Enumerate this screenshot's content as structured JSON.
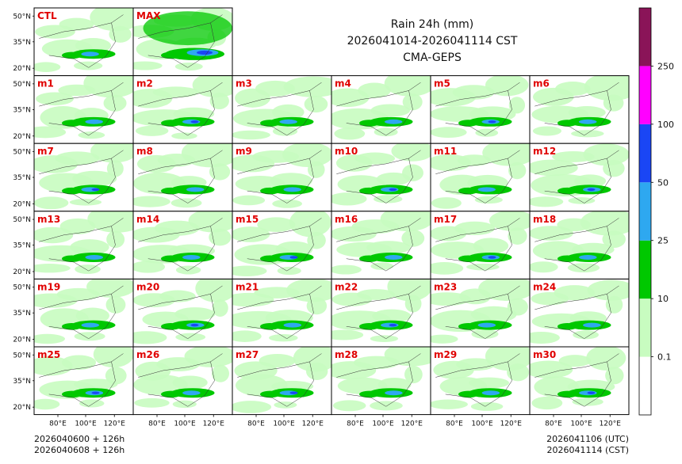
{
  "chart_data": {
    "type": "heatmap",
    "title": {
      "line1": "Rain 24h (mm)",
      "line2": "2026041014-2026041114 CST",
      "line3": "CMA-GEPS"
    },
    "panels": [
      "CTL",
      "MAX",
      "m1",
      "m2",
      "m3",
      "m4",
      "m5",
      "m6",
      "m7",
      "m8",
      "m9",
      "m10",
      "m11",
      "m12",
      "m13",
      "m14",
      "m15",
      "m16",
      "m17",
      "m18",
      "m19",
      "m20",
      "m21",
      "m22",
      "m23",
      "m24",
      "m25",
      "m26",
      "m27",
      "m28",
      "m29",
      "m30"
    ],
    "lat_ticks": [
      "50°N",
      "35°N",
      "20°N"
    ],
    "lon_ticks": [
      "80°E",
      "100°E",
      "120°E"
    ],
    "colorbar": {
      "levels": [
        0.1,
        10,
        25,
        50,
        100,
        250
      ],
      "labels": [
        "0.1",
        "10",
        "25",
        "50",
        "100",
        "250"
      ],
      "colors": [
        "#ffffff",
        "#c8fcc0",
        "#00c800",
        "#2ea8f0",
        "#1a46f5",
        "#ff00ff",
        "#8a1458"
      ]
    }
  },
  "footer": {
    "left_line1": "2026040600 + 126h",
    "left_line2": "2026040608 + 126h",
    "right_line1": "2026041106 (UTC)",
    "right_line2": "2026041114 (CST)"
  }
}
